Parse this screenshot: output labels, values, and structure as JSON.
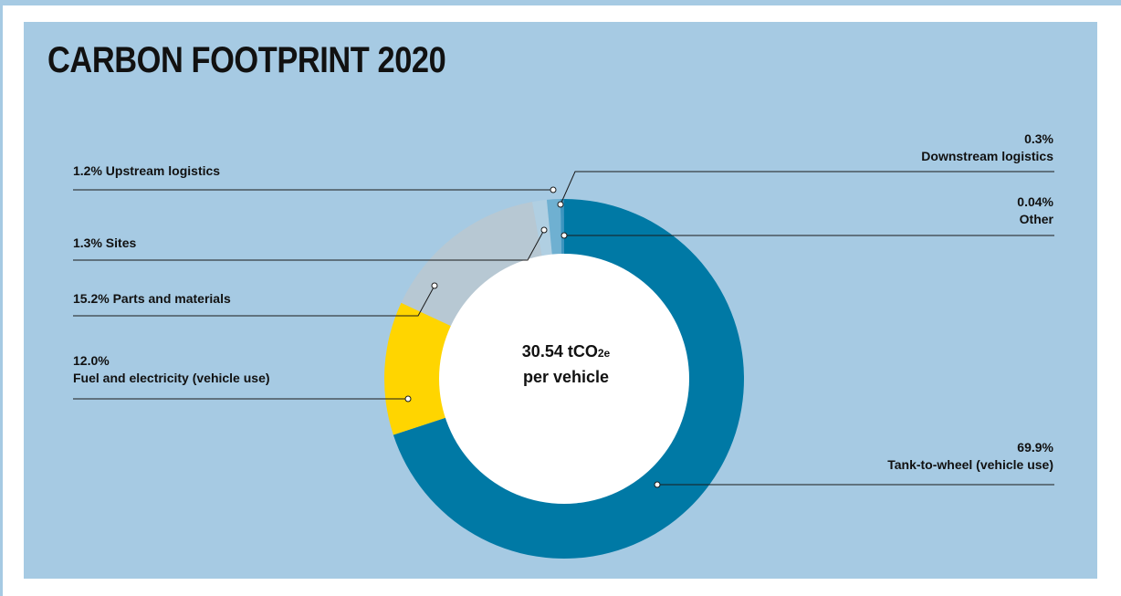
{
  "chart_data": {
    "type": "pie",
    "title": "CARBON FOOTPRINT 2020",
    "center_label": {
      "value": "30.54 tCO",
      "sub": "2e",
      "line2": "per vehicle"
    },
    "slices": [
      {
        "label": "Tank-to-wheel (vehicle use)",
        "pct_text": "69.9%",
        "value": 69.9,
        "color": "#0079a5"
      },
      {
        "label": "Fuel and electricity (vehicle use)",
        "pct_text": "12.0%",
        "value": 12.0,
        "color": "#ffd500"
      },
      {
        "label": "Parts and materials",
        "pct_text": "15.2%",
        "value": 15.2,
        "color": "#b7c8d3"
      },
      {
        "label": "Sites",
        "pct_text": "1.3%",
        "value": 1.3,
        "color": "#b0cfe2"
      },
      {
        "label": "Upstream logistics",
        "pct_text": "1.2%",
        "value": 1.2,
        "color": "#6fb0d1"
      },
      {
        "label": "Downstream logistics",
        "pct_text": "0.3%",
        "value": 0.3,
        "color": "#3d95bf"
      },
      {
        "label": "Other",
        "pct_text": "0.04%",
        "value": 0.04,
        "color": "#1f86b4"
      }
    ]
  },
  "labels": {
    "upstream": "1.2% Upstream logistics",
    "sites": "1.3% Sites",
    "parts": "15.2% Parts and materials",
    "fuel_pct": "12.0%",
    "fuel_name": "Fuel and electricity (vehicle use)",
    "downstream_pct": "0.3%",
    "downstream_name": "Downstream logistics",
    "other_pct": "0.04%",
    "other_name": "Other",
    "tank_pct": "69.9%",
    "tank_name": "Tank-to-wheel (vehicle use)"
  },
  "colors": {
    "background": "#a6cae3",
    "leader": "#1a1a1a"
  }
}
